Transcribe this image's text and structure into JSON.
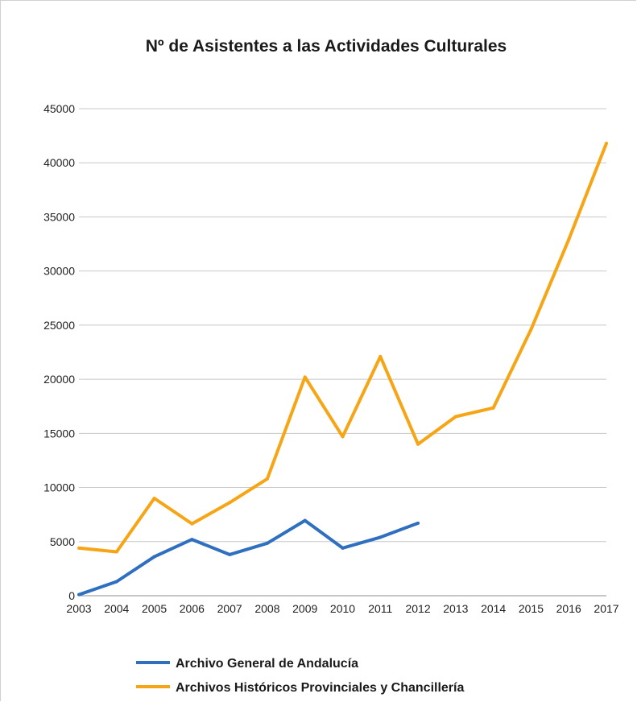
{
  "chart_data": {
    "type": "line",
    "title": "Nº de Asistentes a las Actividades Culturales",
    "xlabel": "",
    "ylabel": "",
    "categories": [
      "2003",
      "2004",
      "2005",
      "2006",
      "2007",
      "2008",
      "2009",
      "2010",
      "2011",
      "2012",
      "2013",
      "2014",
      "2015",
      "2016",
      "2017"
    ],
    "y_ticks": [
      "0",
      "5000",
      "10000",
      "15000",
      "20000",
      "25000",
      "30000",
      "35000",
      "40000",
      "45000"
    ],
    "ylim": [
      0,
      45000
    ],
    "grid": true,
    "legend_position": "bottom",
    "series": [
      {
        "name": "Archivo General de Andalucía",
        "color": "#2e6fbf",
        "values": [
          100,
          1300,
          3600,
          5200,
          3800,
          4850,
          6950,
          4400,
          5400,
          6700,
          null,
          null,
          null,
          null,
          null
        ]
      },
      {
        "name": "Archivos Históricos Provinciales y Chancillería",
        "color": "#f5a515",
        "values": [
          4400,
          4050,
          9000,
          6650,
          8600,
          10800,
          20200,
          14700,
          22100,
          14000,
          16550,
          17350,
          24600,
          32900,
          41800
        ]
      }
    ]
  }
}
